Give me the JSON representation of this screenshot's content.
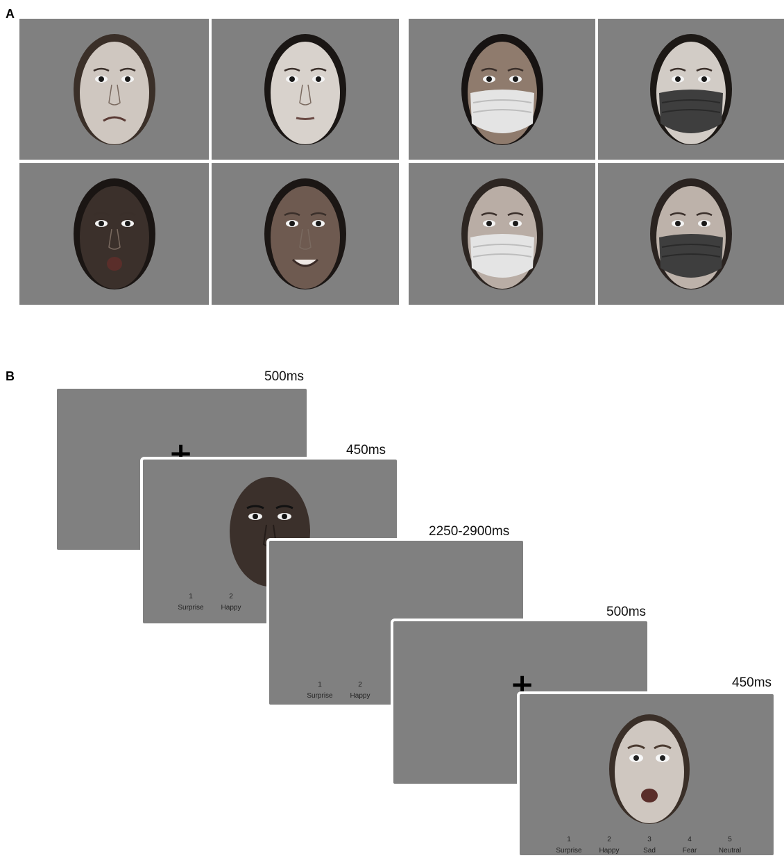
{
  "panel_a": {
    "label": "A",
    "stimuli": [
      {
        "id": "female-fear",
        "skin": "#cfc7c0",
        "hair": "#3a2f28",
        "mouth": "frown",
        "mask": null
      },
      {
        "id": "female-neutral",
        "skin": "#d8d2cc",
        "hair": "#1a1614",
        "mouth": "neutral",
        "mask": null
      },
      {
        "id": "female-masked-white",
        "skin": "#8f7b6d",
        "hair": "#171312",
        "mouth": null,
        "mask": "white"
      },
      {
        "id": "female-masked-dark",
        "skin": "#d2ccc6",
        "hair": "#1d1916",
        "mouth": null,
        "mask": "dark"
      },
      {
        "id": "male-surprise",
        "skin": "#3b302b",
        "hair": "#1a1513",
        "mouth": "open",
        "mask": null
      },
      {
        "id": "male-happy",
        "skin": "#6e5a50",
        "hair": "#1b1614",
        "mouth": "smile",
        "mask": null
      },
      {
        "id": "male-masked-white",
        "skin": "#b9ada5",
        "hair": "#2d2622",
        "mouth": null,
        "mask": "white"
      },
      {
        "id": "male-masked-dark",
        "skin": "#bdb2aa",
        "hair": "#2a2320",
        "mouth": null,
        "mask": "dark"
      }
    ]
  },
  "panel_b": {
    "label": "B",
    "frames": [
      {
        "id": "fixation-1",
        "duration": "500ms",
        "content": "fixation"
      },
      {
        "id": "stimulus-1",
        "duration": "450ms",
        "content": "face",
        "skin": "#3b302b"
      },
      {
        "id": "blank",
        "duration": "2250-2900ms",
        "content": "blank"
      },
      {
        "id": "fixation-2",
        "duration": "500ms",
        "content": "fixation"
      },
      {
        "id": "stimulus-2",
        "duration": "450ms",
        "content": "face",
        "skin": "#cfc7c0"
      }
    ],
    "fixation_symbol": "+",
    "response_options": [
      {
        "number": "1",
        "label": "Surprise"
      },
      {
        "number": "2",
        "label": "Happy"
      },
      {
        "number": "3",
        "label": "Sad"
      },
      {
        "number": "4",
        "label": "Fear"
      },
      {
        "number": "5",
        "label": "Neutral"
      }
    ]
  },
  "colors": {
    "background": "#808080",
    "border": "#ffffff"
  }
}
